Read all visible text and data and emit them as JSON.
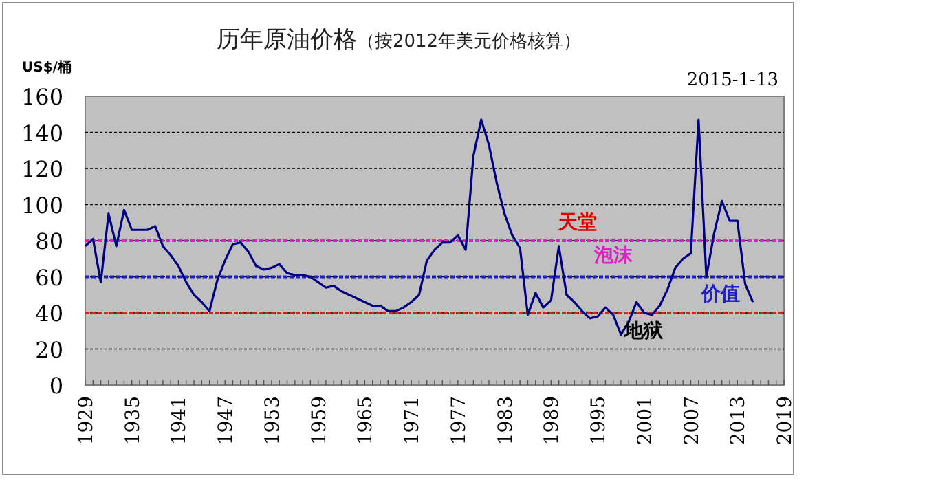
{
  "chart_data": {
    "type": "line",
    "title": "历年原油价格",
    "subtitle": "（按2012年美元价格核算）",
    "ylabel": "US$/桶",
    "x": [
      1929,
      1930,
      1931,
      1932,
      1933,
      1934,
      1935,
      1936,
      1937,
      1938,
      1939,
      1940,
      1941,
      1942,
      1943,
      1944,
      1945,
      1946,
      1947,
      1948,
      1949,
      1950,
      1951,
      1952,
      1953,
      1954,
      1955,
      1956,
      1957,
      1958,
      1959,
      1960,
      1961,
      1962,
      1963,
      1964,
      1965,
      1966,
      1967,
      1968,
      1969,
      1970,
      1971,
      1972,
      1973,
      1974,
      1975,
      1976,
      1977,
      1978,
      1979,
      1980,
      1981,
      1982,
      1983,
      1984,
      1985,
      1986,
      1987,
      1988,
      1989,
      1990,
      1991,
      1992,
      1993,
      1994,
      1995,
      1996,
      1997,
      1998,
      1999,
      2000,
      2001,
      2002,
      2003,
      2004,
      2005,
      2006,
      2007,
      2008,
      2009,
      2010,
      2011,
      2012,
      2013,
      2014,
      2015
    ],
    "series": [
      {
        "color": "#000080",
        "values": [
          77,
          81,
          57,
          95,
          77,
          97,
          86,
          86,
          86,
          88,
          77,
          72,
          66,
          57,
          50,
          46,
          41,
          58,
          69,
          78,
          79,
          74,
          66,
          64,
          65,
          67,
          62,
          61,
          61,
          60,
          57,
          54,
          55,
          52,
          50,
          48,
          46,
          44,
          44,
          41,
          41,
          43,
          46,
          50,
          69,
          75,
          79,
          79,
          83,
          75,
          127,
          147,
          133,
          112,
          95,
          83,
          76,
          39,
          51,
          43,
          47,
          77,
          50,
          46,
          41,
          37,
          38,
          43,
          39,
          28,
          35,
          46,
          40,
          39,
          44,
          53,
          65,
          70,
          73,
          147,
          60,
          84,
          102,
          91,
          91,
          56,
          46
        ]
      }
    ],
    "xlim": [
      1929,
      2019
    ],
    "xticks": [
      1929,
      1935,
      1941,
      1947,
      1953,
      1959,
      1965,
      1971,
      1977,
      1983,
      1989,
      1995,
      2001,
      2007,
      2013,
      2019
    ],
    "ylim": [
      0,
      160
    ],
    "yticks": [
      0,
      20,
      40,
      60,
      80,
      100,
      120,
      140,
      160
    ],
    "grid": "y",
    "marker": "none",
    "line_style": "solid",
    "ref_lines": [
      {
        "axis": "y",
        "value": 80,
        "color": "#e020c0",
        "line_style": "dashed"
      },
      {
        "axis": "y",
        "value": 60,
        "color": "#2020c0",
        "line_style": "dashed"
      },
      {
        "axis": "y",
        "value": 40,
        "color": "#e02020",
        "line_style": "dashed"
      }
    ],
    "annotations": [
      "2015-1-13",
      "天堂",
      "泡沫",
      "价值",
      "地狱"
    ]
  }
}
